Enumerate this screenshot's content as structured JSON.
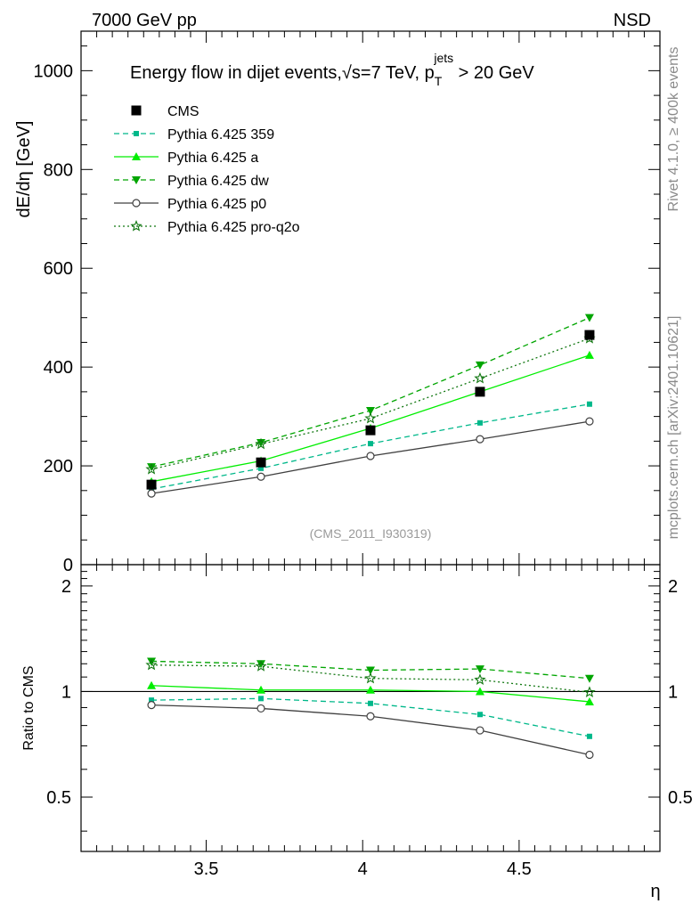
{
  "header": {
    "left": "7000 GeV pp",
    "right": "NSD"
  },
  "side_labels": {
    "rivet": "Rivet 4.1.0, ≥ 400k events",
    "mcplots": "mcplots.cern.ch [arXiv:2401.10621]"
  },
  "watermark": "(CMS_2011_I930319)",
  "colors": {
    "cms": "#000000",
    "p359": "#00b88a",
    "a": "#00ee00",
    "dw": "#00a500",
    "p0": "#404040",
    "proq2o": "#117711"
  },
  "chart_data": [
    {
      "type": "line",
      "panel": "main",
      "title": "Energy flow in dijet events,√s=7 TeV, p_T^jets > 20 GeV",
      "title_parts": {
        "prefix": "Energy flow in dijet events,",
        "sqrt": "√",
        "s_eq": "s=7 TeV, p",
        "sub": "T",
        "sup": "jets",
        "suffix": " > 20 GeV"
      },
      "xlabel": "",
      "ylabel": "dE/dη [GeV]",
      "xlim": [
        3.1,
        4.95
      ],
      "ylim": [
        0,
        1080
      ],
      "yticks": [
        {
          "value": 0,
          "label": "0"
        },
        {
          "value": 200,
          "label": "200"
        },
        {
          "value": 400,
          "label": "400"
        },
        {
          "value": 600,
          "label": "600"
        },
        {
          "value": 800,
          "label": "800"
        },
        {
          "value": 1000,
          "label": "1000"
        }
      ],
      "x": [
        3.325,
        3.675,
        4.025,
        4.375,
        4.725
      ],
      "series": [
        {
          "key": "cms",
          "name": "CMS",
          "values": [
            162,
            207,
            272,
            350,
            465
          ],
          "style": "data",
          "marker": "square"
        },
        {
          "key": "p359",
          "name": "Pythia 6.425 359",
          "values": [
            153,
            195,
            245,
            287,
            325
          ],
          "style": "dashed",
          "marker": "smallsquare"
        },
        {
          "key": "a",
          "name": "Pythia 6.425 a",
          "values": [
            168,
            210,
            276,
            350,
            424
          ],
          "style": "solid",
          "marker": "triangle-up"
        },
        {
          "key": "dw",
          "name": "Pythia 6.425 dw",
          "values": [
            198,
            247,
            312,
            404,
            500
          ],
          "style": "dashed",
          "marker": "triangle-down"
        },
        {
          "key": "p0",
          "name": "Pythia 6.425 p0",
          "values": [
            144,
            178,
            220,
            254,
            290
          ],
          "style": "solid",
          "marker": "circle"
        },
        {
          "key": "proq2o",
          "name": "Pythia 6.425 pro-q2o",
          "values": [
            193,
            244,
            296,
            377,
            458
          ],
          "style": "dotted",
          "marker": "star"
        }
      ],
      "legend": "top-left"
    },
    {
      "type": "line",
      "panel": "ratio",
      "xlabel": "η",
      "ylabel": "Ratio to CMS",
      "xlim": [
        3.1,
        4.95
      ],
      "ylim": [
        0.35,
        2.3
      ],
      "xticks": [
        {
          "value": 3.5,
          "label": "3.5"
        },
        {
          "value": 4.0,
          "label": "4"
        },
        {
          "value": 4.5,
          "label": "4.5"
        }
      ],
      "yticks": [
        {
          "value": 0.5,
          "label": "0.5"
        },
        {
          "value": 1,
          "label": "1"
        },
        {
          "value": 2,
          "label": "2"
        }
      ],
      "reference": 1,
      "x": [
        3.325,
        3.675,
        4.025,
        4.375,
        4.725
      ],
      "series": [
        {
          "key": "p359",
          "name": "Pythia 6.425 359",
          "values": [
            0.945,
            0.955,
            0.925,
            0.86,
            0.745
          ],
          "style": "dashed",
          "marker": "smallsquare"
        },
        {
          "key": "a",
          "name": "Pythia 6.425 a",
          "values": [
            1.04,
            1.01,
            1.01,
            1.0,
            0.935
          ],
          "style": "solid",
          "marker": "triangle-up"
        },
        {
          "key": "dw",
          "name": "Pythia 6.425 dw",
          "values": [
            1.22,
            1.2,
            1.15,
            1.16,
            1.09
          ],
          "style": "dashed",
          "marker": "triangle-down"
        },
        {
          "key": "p0",
          "name": "Pythia 6.425 p0",
          "values": [
            0.915,
            0.895,
            0.85,
            0.775,
            0.66
          ],
          "style": "solid",
          "marker": "circle"
        },
        {
          "key": "proq2o",
          "name": "Pythia 6.425 pro-q2o",
          "values": [
            1.19,
            1.18,
            1.09,
            1.08,
            0.995
          ],
          "style": "dotted",
          "marker": "star"
        }
      ]
    }
  ]
}
